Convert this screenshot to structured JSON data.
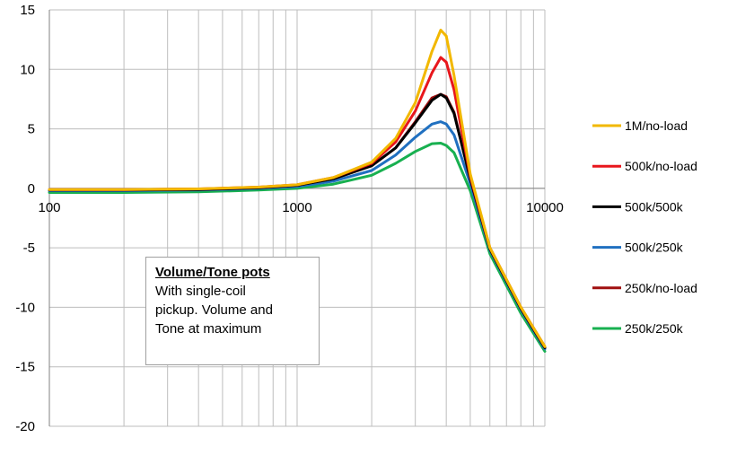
{
  "chart_data": {
    "type": "line",
    "title": "",
    "xlabel": "",
    "ylabel": "",
    "xscale": "log",
    "xlim": [
      100,
      10000
    ],
    "ylim": [
      -20,
      15
    ],
    "grid": true,
    "legend_position": "right",
    "x_tick_labels": [
      "100",
      "1000",
      "10000"
    ],
    "y_tick_labels": [
      "15",
      "10",
      "5",
      "0",
      "-5",
      "-10",
      "-15",
      "-20"
    ],
    "x_ticks": [
      100,
      1000,
      10000
    ],
    "y_ticks": [
      15,
      10,
      5,
      0,
      -5,
      -10,
      -15,
      -20
    ],
    "x": [
      100,
      200,
      400,
      700,
      1000,
      1400,
      2000,
      2500,
      3000,
      3500,
      3800,
      4000,
      4300,
      5000,
      6000,
      8000,
      10000
    ],
    "series": [
      {
        "name": "1M/no-load",
        "color": "#f2b800",
        "values": [
          -0.1,
          -0.1,
          -0.05,
          0.1,
          0.3,
          0.9,
          2.2,
          4.2,
          7.2,
          11.5,
          13.3,
          12.8,
          9.5,
          1.2,
          -5.0,
          -10.0,
          -13.3
        ]
      },
      {
        "name": "500k/no-load",
        "color": "#e8161c",
        "values": [
          -0.1,
          -0.1,
          -0.05,
          0.1,
          0.3,
          0.9,
          2.1,
          3.9,
          6.5,
          9.7,
          11.0,
          10.6,
          8.3,
          1.0,
          -5.0,
          -10.0,
          -13.3
        ]
      },
      {
        "name": "500k/500k",
        "color": "#000000",
        "values": [
          -0.15,
          -0.15,
          -0.1,
          0.05,
          0.25,
          0.8,
          1.9,
          3.4,
          5.5,
          7.4,
          7.9,
          7.6,
          6.3,
          0.8,
          -5.1,
          -10.1,
          -13.4
        ]
      },
      {
        "name": "500k/250k",
        "color": "#2070c0",
        "values": [
          -0.2,
          -0.2,
          -0.15,
          0.0,
          0.15,
          0.6,
          1.5,
          2.8,
          4.3,
          5.4,
          5.6,
          5.4,
          4.5,
          0.4,
          -5.2,
          -10.2,
          -13.5
        ]
      },
      {
        "name": "250k/no-load",
        "color": "#a01010",
        "values": [
          -0.15,
          -0.15,
          -0.1,
          0.05,
          0.25,
          0.8,
          1.9,
          3.4,
          5.6,
          7.6,
          7.9,
          7.7,
          6.4,
          0.8,
          -5.1,
          -10.1,
          -13.4
        ]
      },
      {
        "name": "250k/250k",
        "color": "#18b050",
        "values": [
          -0.35,
          -0.35,
          -0.3,
          -0.15,
          0.0,
          0.35,
          1.1,
          2.1,
          3.1,
          3.75,
          3.8,
          3.6,
          3.0,
          -0.2,
          -5.5,
          -10.5,
          -13.7
        ]
      }
    ]
  },
  "annotation": {
    "title": "Volume/Tone pots",
    "line1": "With single-coil",
    "line2": "pickup. Volume and",
    "line3": "Tone at maximum"
  }
}
